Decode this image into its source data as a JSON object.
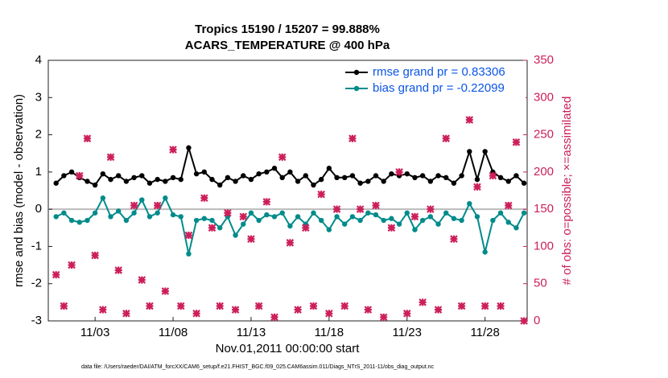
{
  "chart_data": {
    "type": "line",
    "title": "Tropics 15190 / 15207 = 99.888%",
    "subtitle": "ACARS_TEMPERATURE @ 400 hPa",
    "x_label": "Nov.01,2011 00:00:00 start",
    "y_label": "rmse and bias (model - observation)",
    "y2_label": "# of obs: o=possible; ×=assimilated",
    "footnote": "data file: /Users/raeder/DAI/ATM_forcXX/CAM6_setup/f.e21.FHIST_BGC.f09_025.CAM6assim.011/Diags_NTrS_2011-11/obs_diag_output.nc",
    "x": [
      0.5,
      1,
      1.5,
      2,
      2.5,
      3,
      3.5,
      4,
      4.5,
      5,
      5.5,
      6,
      6.5,
      7,
      7.5,
      8,
      8.5,
      9,
      9.5,
      10,
      10.5,
      11,
      11.5,
      12,
      12.5,
      13,
      13.5,
      14,
      14.5,
      15,
      15.5,
      16,
      16.5,
      17,
      17.5,
      18,
      18.5,
      19,
      19.5,
      20,
      20.5,
      21,
      21.5,
      22,
      22.5,
      23,
      23.5,
      24,
      24.5,
      25,
      25.5,
      26,
      26.5,
      27,
      27.5,
      28,
      28.5,
      29,
      29.5,
      30,
      30.5
    ],
    "xlim": [
      0,
      30.7
    ],
    "xticks": [
      {
        "value": 3,
        "label": "11/03"
      },
      {
        "value": 8,
        "label": "11/08"
      },
      {
        "value": 13,
        "label": "11/13"
      },
      {
        "value": 18,
        "label": "11/18"
      },
      {
        "value": 23,
        "label": "11/23"
      },
      {
        "value": 28,
        "label": "11/28"
      }
    ],
    "ylim": [
      -3,
      4
    ],
    "yticks": [
      -3,
      -2,
      -1,
      0,
      1,
      2,
      3,
      4
    ],
    "y2lim": [
      0,
      350
    ],
    "y2ticks": [
      0,
      50,
      100,
      150,
      200,
      250,
      300,
      350
    ],
    "y2_color": "#cc1f5a",
    "zero_line": true,
    "legend": "upper right",
    "legend_text_color": "#0b55e8",
    "series": [
      {
        "name": "rmse grand pr = 0.83306",
        "color": "#000000",
        "marker": "dot",
        "values": [
          0.7,
          0.9,
          1.0,
          0.85,
          0.75,
          0.65,
          0.95,
          0.8,
          0.9,
          0.75,
          0.85,
          0.9,
          0.7,
          0.8,
          0.75,
          0.85,
          0.8,
          1.65,
          0.95,
          1.0,
          0.8,
          0.65,
          0.85,
          0.75,
          0.9,
          0.8,
          0.95,
          1.0,
          1.1,
          0.85,
          1.0,
          0.75,
          0.9,
          0.65,
          0.8,
          1.1,
          0.85,
          0.85,
          0.9,
          0.7,
          0.75,
          0.9,
          0.75,
          0.95,
          0.9,
          0.95,
          0.85,
          0.9,
          0.75,
          0.9,
          0.85,
          0.7,
          0.9,
          1.55,
          0.8,
          1.55,
          1.0,
          0.85,
          0.75,
          0.9,
          0.7
        ]
      },
      {
        "name": "bias grand pr = -0.22099",
        "color": "#008b8b",
        "marker": "dot",
        "values": [
          -0.2,
          -0.1,
          -0.3,
          -0.35,
          -0.3,
          -0.1,
          0.3,
          -0.2,
          -0.05,
          -0.3,
          -0.1,
          0.25,
          -0.2,
          -0.1,
          0.3,
          -0.15,
          -0.2,
          -1.2,
          -0.3,
          -0.25,
          -0.3,
          -0.5,
          -0.2,
          -0.7,
          -0.4,
          -0.1,
          -0.3,
          -0.15,
          -0.2,
          -0.1,
          -0.45,
          -0.2,
          -0.4,
          -0.1,
          -0.3,
          -0.55,
          -0.2,
          -0.4,
          -0.2,
          -0.3,
          -0.1,
          -0.15,
          -0.3,
          -0.25,
          -0.4,
          -0.1,
          -0.55,
          -0.3,
          -0.2,
          -0.4,
          -0.1,
          -0.25,
          -0.3,
          0.15,
          -0.2,
          -1.15,
          -0.3,
          -0.1,
          -0.35,
          -0.5,
          -0.1
        ]
      },
      {
        "axis": "y2",
        "color": "#cc1f5a",
        "marker": "cross",
        "values": [
          62,
          20,
          75,
          195,
          245,
          88,
          15,
          220,
          68,
          10,
          155,
          55,
          20,
          155,
          40,
          230,
          20,
          115,
          10,
          165,
          125,
          20,
          145,
          15,
          140,
          110,
          20,
          160,
          5,
          220,
          105,
          15,
          125,
          20,
          170,
          10,
          150,
          20,
          245,
          150,
          15,
          155,
          5,
          125,
          200,
          10,
          140,
          25,
          150,
          15,
          245,
          110,
          20,
          270,
          180,
          20,
          195,
          20,
          155,
          240,
          0
        ]
      }
    ]
  }
}
